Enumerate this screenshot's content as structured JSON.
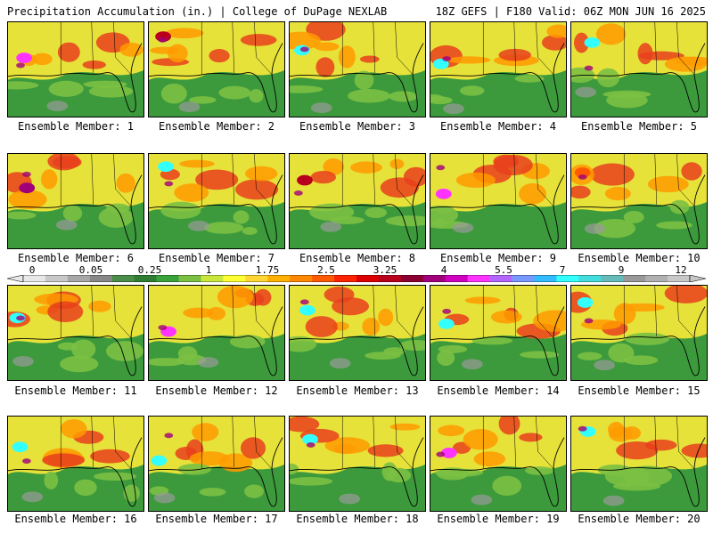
{
  "header": {
    "title": "Precipitation Accumulation (in.) | College of DuPage NEXLAB",
    "run_info": "18Z GEFS | F180 Valid: 06Z MON JUN 16 2025"
  },
  "colorbar": {
    "tick_labels": [
      "0",
      "0.05",
      "0.25",
      "1",
      "1.75",
      "2.5",
      "3.25",
      "4",
      "5.5",
      "7",
      "9",
      "12"
    ],
    "colors": [
      "#e8e8e8",
      "#c8c8c8",
      "#a8a8a8",
      "#888888",
      "#4a8c4a",
      "#2e7d32",
      "#3aa23a",
      "#7bc043",
      "#c8e63c",
      "#ffff33",
      "#ffd633",
      "#ffb000",
      "#ff8800",
      "#ff5a00",
      "#ff2200",
      "#dd0000",
      "#b8001e",
      "#8b0030",
      "#a0007a",
      "#d000c0",
      "#ff33ff",
      "#b366ff",
      "#7799ff",
      "#33bbff",
      "#33ffff",
      "#44dddd",
      "#66bbbb",
      "#999999",
      "#b0b0b0",
      "#c8c8c8"
    ]
  },
  "panels": [
    {
      "label": "Ensemble Member: 1",
      "accent": "#ff33ff"
    },
    {
      "label": "Ensemble Member: 2",
      "accent": "#b8001e"
    },
    {
      "label": "Ensemble Member: 3",
      "accent": "#33ffff"
    },
    {
      "label": "Ensemble Member: 4",
      "accent": "#33ffff"
    },
    {
      "label": "Ensemble Member: 5",
      "accent": "#33ffff"
    },
    {
      "label": "Ensemble Member: 6",
      "accent": "#a0007a"
    },
    {
      "label": "Ensemble Member: 7",
      "accent": "#33ffff"
    },
    {
      "label": "Ensemble Member: 8",
      "accent": "#b8001e"
    },
    {
      "label": "Ensemble Member: 9",
      "accent": "#ff33ff"
    },
    {
      "label": "Ensemble Member: 10",
      "accent": "#ff5a00"
    },
    {
      "label": "Ensemble Member: 11",
      "accent": "#33ffff"
    },
    {
      "label": "Ensemble Member: 12",
      "accent": "#ff33ff"
    },
    {
      "label": "Ensemble Member: 13",
      "accent": "#33ffff"
    },
    {
      "label": "Ensemble Member: 14",
      "accent": "#33ffff"
    },
    {
      "label": "Ensemble Member: 15",
      "accent": "#33ffff"
    },
    {
      "label": "Ensemble Member: 16",
      "accent": "#33ffff"
    },
    {
      "label": "Ensemble Member: 17",
      "accent": "#33ffff"
    },
    {
      "label": "Ensemble Member: 18",
      "accent": "#33ffff"
    },
    {
      "label": "Ensemble Member: 19",
      "accent": "#ff33ff"
    },
    {
      "label": "Ensemble Member: 20",
      "accent": "#33ffff"
    }
  ]
}
